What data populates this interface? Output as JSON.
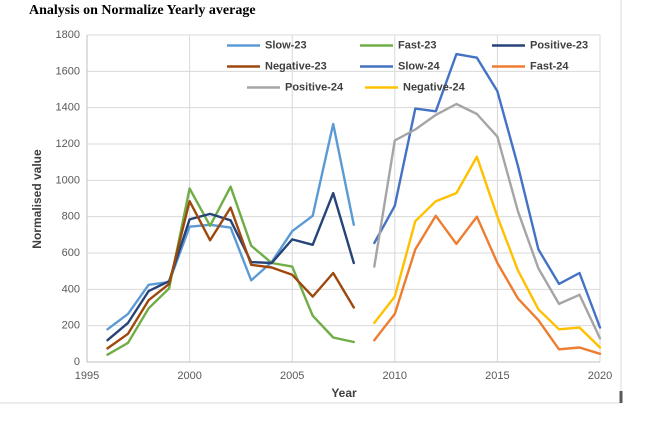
{
  "title": "Analysis on Normalize Yearly average",
  "axes": {
    "x_title": "Year",
    "y_title": "Normalised value"
  },
  "colors": {
    "gridline": "#d9d9d9",
    "axis_line": "#bfbfbf",
    "tick_text": "#595959",
    "axis_title_text": "#3f3f3f",
    "title_text": "#000000",
    "frame_border": "#d9d9d9",
    "corner_mark": "#595959"
  },
  "chart_data": {
    "type": "line",
    "title": "Analysis on Normalize Yearly average",
    "xlabel": "Year",
    "ylabel": "Normalised value",
    "ylim": [
      0,
      1800
    ],
    "ytick_step": 200,
    "xlim": [
      1995,
      2021
    ],
    "xticks": [
      1995,
      2000,
      2005,
      2010,
      2015,
      2020
    ],
    "grid": true,
    "legend_position": "top-inside",
    "legend_layout": [
      [
        "Slow-23",
        "Fast-23",
        "Positive-23"
      ],
      [
        "Negative-23",
        "Slow-24",
        "Fast-24"
      ],
      [
        "Positive-24",
        "Negative-24"
      ]
    ],
    "series": [
      {
        "name": "Slow-23",
        "color": "#5B9BD5",
        "x": [
          1996,
          1997,
          1998,
          1999,
          2000,
          2001,
          2002,
          2003,
          2004,
          2005,
          2006,
          2007,
          2008
        ],
        "values": [
          180,
          265,
          425,
          440,
          745,
          755,
          740,
          450,
          550,
          720,
          805,
          1310,
          755
        ]
      },
      {
        "name": "Fast-23",
        "color": "#70AD47",
        "x": [
          1996,
          1997,
          1998,
          1999,
          2000,
          2001,
          2002,
          2003,
          2004,
          2005,
          2006,
          2007,
          2008
        ],
        "values": [
          40,
          105,
          295,
          405,
          955,
          750,
          965,
          640,
          545,
          525,
          255,
          135,
          110
        ]
      },
      {
        "name": "Positive-23",
        "color": "#264478",
        "x": [
          1996,
          1997,
          1998,
          1999,
          2000,
          2001,
          2002,
          2003,
          2004,
          2005,
          2006,
          2007,
          2008
        ],
        "values": [
          120,
          215,
          390,
          445,
          785,
          815,
          780,
          550,
          545,
          675,
          645,
          930,
          545
        ]
      },
      {
        "name": "Negative-23",
        "color": "#9E480E",
        "x": [
          1996,
          1997,
          1998,
          1999,
          2000,
          2001,
          2002,
          2003,
          2004,
          2005,
          2006,
          2007,
          2008
        ],
        "values": [
          75,
          155,
          340,
          430,
          885,
          670,
          850,
          535,
          520,
          480,
          360,
          490,
          300
        ]
      },
      {
        "name": "Slow-24",
        "color": "#4472C4",
        "x": [
          2009,
          2010,
          2011,
          2012,
          2013,
          2014,
          2015,
          2016,
          2017,
          2018,
          2019,
          2020
        ],
        "values": [
          655,
          860,
          1395,
          1380,
          1695,
          1675,
          1490,
          1080,
          620,
          430,
          490,
          190
        ]
      },
      {
        "name": "Fast-24",
        "color": "#ED7D31",
        "x": [
          2009,
          2010,
          2011,
          2012,
          2013,
          2014,
          2015,
          2016,
          2017,
          2018,
          2019,
          2020
        ],
        "values": [
          120,
          265,
          620,
          805,
          650,
          800,
          545,
          350,
          230,
          70,
          80,
          45
        ]
      },
      {
        "name": "Positive-24",
        "color": "#A5A5A5",
        "x": [
          2009,
          2010,
          2011,
          2012,
          2013,
          2014,
          2015,
          2016,
          2017,
          2018,
          2019,
          2020
        ],
        "values": [
          525,
          1220,
          1280,
          1360,
          1420,
          1365,
          1240,
          830,
          515,
          320,
          370,
          130
        ]
      },
      {
        "name": "Negative-24",
        "color": "#FFC000",
        "x": [
          2009,
          2010,
          2011,
          2012,
          2013,
          2014,
          2015,
          2016,
          2017,
          2018,
          2019,
          2020
        ],
        "values": [
          215,
          360,
          775,
          885,
          930,
          1130,
          800,
          505,
          290,
          180,
          190,
          80
        ]
      }
    ]
  }
}
